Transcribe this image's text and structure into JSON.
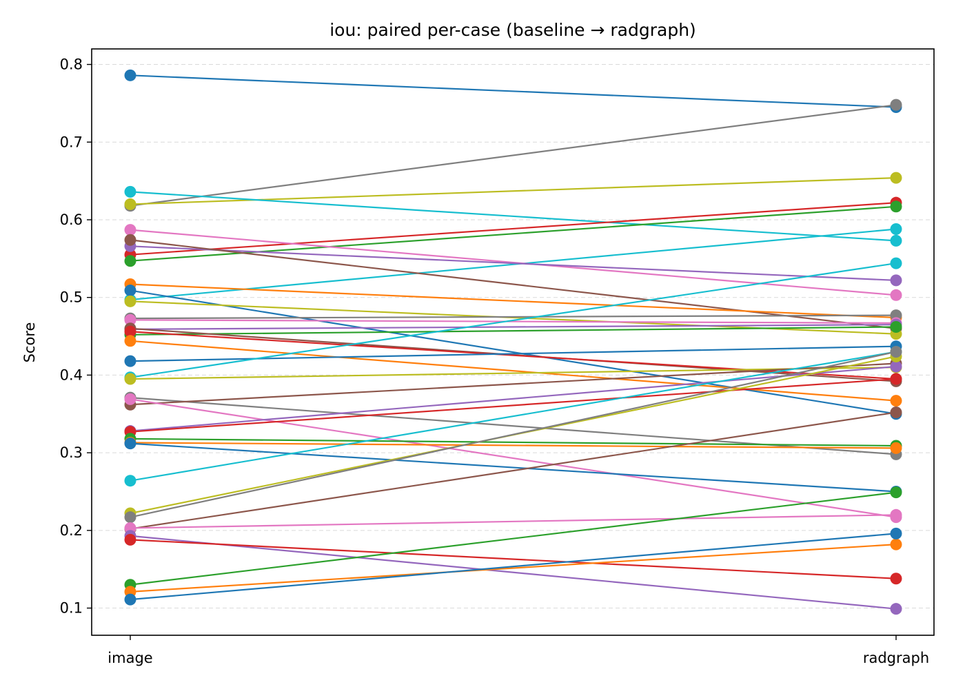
{
  "chart_data": {
    "type": "line",
    "title": "iou: paired per-case (baseline → radgraph)",
    "xlabel": "",
    "ylabel": "Score",
    "categories": [
      "image",
      "radgraph"
    ],
    "ylim": [
      0.065,
      0.82
    ],
    "yticks": [
      0.1,
      0.2,
      0.3,
      0.4,
      0.5,
      0.6,
      0.7,
      0.8
    ],
    "grid": "y-dashed",
    "legend": "none",
    "series": [
      {
        "values": [
          0.786,
          0.745
        ],
        "color": "#1f77b4"
      },
      {
        "values": [
          0.618,
          0.748
        ],
        "color": "#7f7f7f"
      },
      {
        "values": [
          0.62,
          0.654
        ],
        "color": "#bcbd22"
      },
      {
        "values": [
          0.636,
          0.573
        ],
        "color": "#17becf"
      },
      {
        "values": [
          0.555,
          0.622
        ],
        "color": "#d62728"
      },
      {
        "values": [
          0.547,
          0.617
        ],
        "color": "#2ca02c"
      },
      {
        "values": [
          0.497,
          0.588
        ],
        "color": "#17becf"
      },
      {
        "values": [
          0.587,
          0.503
        ],
        "color": "#e377c2"
      },
      {
        "values": [
          0.566,
          0.522
        ],
        "color": "#9467bd"
      },
      {
        "values": [
          0.574,
          0.46
        ],
        "color": "#8c564b"
      },
      {
        "values": [
          0.517,
          0.474
        ],
        "color": "#ff7f0e"
      },
      {
        "values": [
          0.509,
          0.35
        ],
        "color": "#1f77b4"
      },
      {
        "values": [
          0.495,
          0.453
        ],
        "color": "#bcbd22"
      },
      {
        "values": [
          0.473,
          0.477
        ],
        "color": "#7f7f7f"
      },
      {
        "values": [
          0.471,
          0.467
        ],
        "color": "#e377c2"
      },
      {
        "values": [
          0.459,
          0.465
        ],
        "color": "#9467bd"
      },
      {
        "values": [
          0.452,
          0.462
        ],
        "color": "#2ca02c"
      },
      {
        "values": [
          0.46,
          0.392
        ],
        "color": "#8c564b"
      },
      {
        "values": [
          0.456,
          0.395
        ],
        "color": "#d62728"
      },
      {
        "values": [
          0.444,
          0.367
        ],
        "color": "#ff7f0e"
      },
      {
        "values": [
          0.418,
          0.437
        ],
        "color": "#1f77b4"
      },
      {
        "values": [
          0.397,
          0.544
        ],
        "color": "#17becf"
      },
      {
        "values": [
          0.395,
          0.41
        ],
        "color": "#bcbd22"
      },
      {
        "values": [
          0.371,
          0.298
        ],
        "color": "#7f7f7f"
      },
      {
        "values": [
          0.362,
          0.415
        ],
        "color": "#8c564b"
      },
      {
        "values": [
          0.369,
          0.217
        ],
        "color": "#e377c2"
      },
      {
        "values": [
          0.328,
          0.411
        ],
        "color": "#9467bd"
      },
      {
        "values": [
          0.327,
          0.395
        ],
        "color": "#d62728"
      },
      {
        "values": [
          0.318,
          0.309
        ],
        "color": "#2ca02c"
      },
      {
        "values": [
          0.313,
          0.306
        ],
        "color": "#ff7f0e"
      },
      {
        "values": [
          0.312,
          0.25
        ],
        "color": "#1f77b4"
      },
      {
        "values": [
          0.264,
          0.43
        ],
        "color": "#17becf"
      },
      {
        "values": [
          0.222,
          0.424
        ],
        "color": "#bcbd22"
      },
      {
        "values": [
          0.217,
          0.43
        ],
        "color": "#7f7f7f"
      },
      {
        "values": [
          0.202,
          0.352
        ],
        "color": "#8c564b"
      },
      {
        "values": [
          0.203,
          0.22
        ],
        "color": "#e377c2"
      },
      {
        "values": [
          0.193,
          0.099
        ],
        "color": "#9467bd"
      },
      {
        "values": [
          0.188,
          0.138
        ],
        "color": "#d62728"
      },
      {
        "values": [
          0.13,
          0.249
        ],
        "color": "#2ca02c"
      },
      {
        "values": [
          0.121,
          0.182
        ],
        "color": "#ff7f0e"
      },
      {
        "values": [
          0.111,
          0.196
        ],
        "color": "#1f77b4"
      }
    ]
  }
}
